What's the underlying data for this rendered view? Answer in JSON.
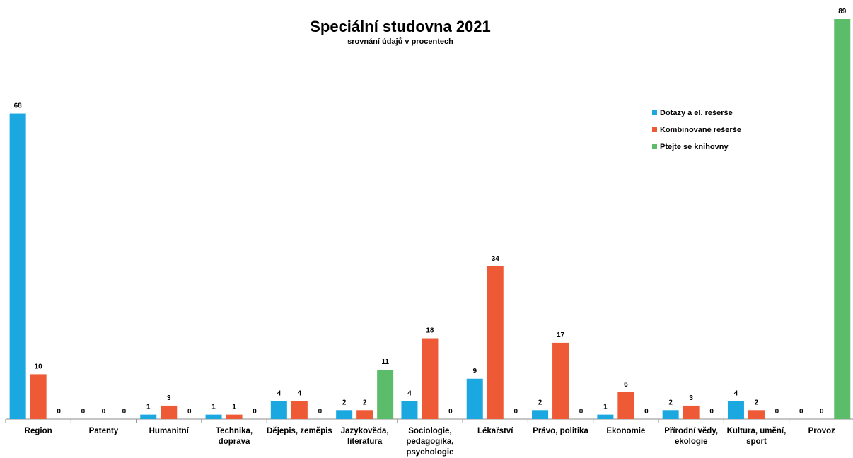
{
  "chart_data": {
    "type": "bar",
    "title": "Speciální studovna 2021",
    "subtitle": "srovnání údajů v procentech",
    "xlabel": "",
    "ylabel": "",
    "ylim": [
      0,
      89
    ],
    "grid": false,
    "legend_position": "top-right",
    "categories": [
      [
        "Region"
      ],
      [
        "Patenty"
      ],
      [
        "Humanitní"
      ],
      [
        "Technika,",
        "doprava"
      ],
      [
        "Dějepis, zeměpis"
      ],
      [
        "Jazykověda,",
        "literatura"
      ],
      [
        "Sociologie,",
        "pedagogika,",
        "psychologie"
      ],
      [
        "Lékařství"
      ],
      [
        "Právo, politika"
      ],
      [
        "Ekonomie"
      ],
      [
        "Přírodní vědy,",
        "ekologie"
      ],
      [
        "Kultura, umění,",
        "sport"
      ],
      [
        "Provoz"
      ]
    ],
    "series": [
      {
        "name": "Dotazy a el. rešerše",
        "color": "#1BA7DF",
        "values": [
          68,
          0,
          1,
          1,
          4,
          2,
          4,
          9,
          2,
          1,
          2,
          4,
          0
        ]
      },
      {
        "name": "Kombinované rešerše",
        "color": "#EE5A36",
        "values": [
          10,
          0,
          3,
          1,
          4,
          2,
          18,
          34,
          17,
          6,
          3,
          2,
          0
        ]
      },
      {
        "name": "Ptejte se knihovny",
        "color": "#5BBD6A",
        "values": [
          0,
          0,
          0,
          0,
          0,
          11,
          0,
          0,
          0,
          0,
          0,
          0,
          89
        ]
      }
    ]
  }
}
